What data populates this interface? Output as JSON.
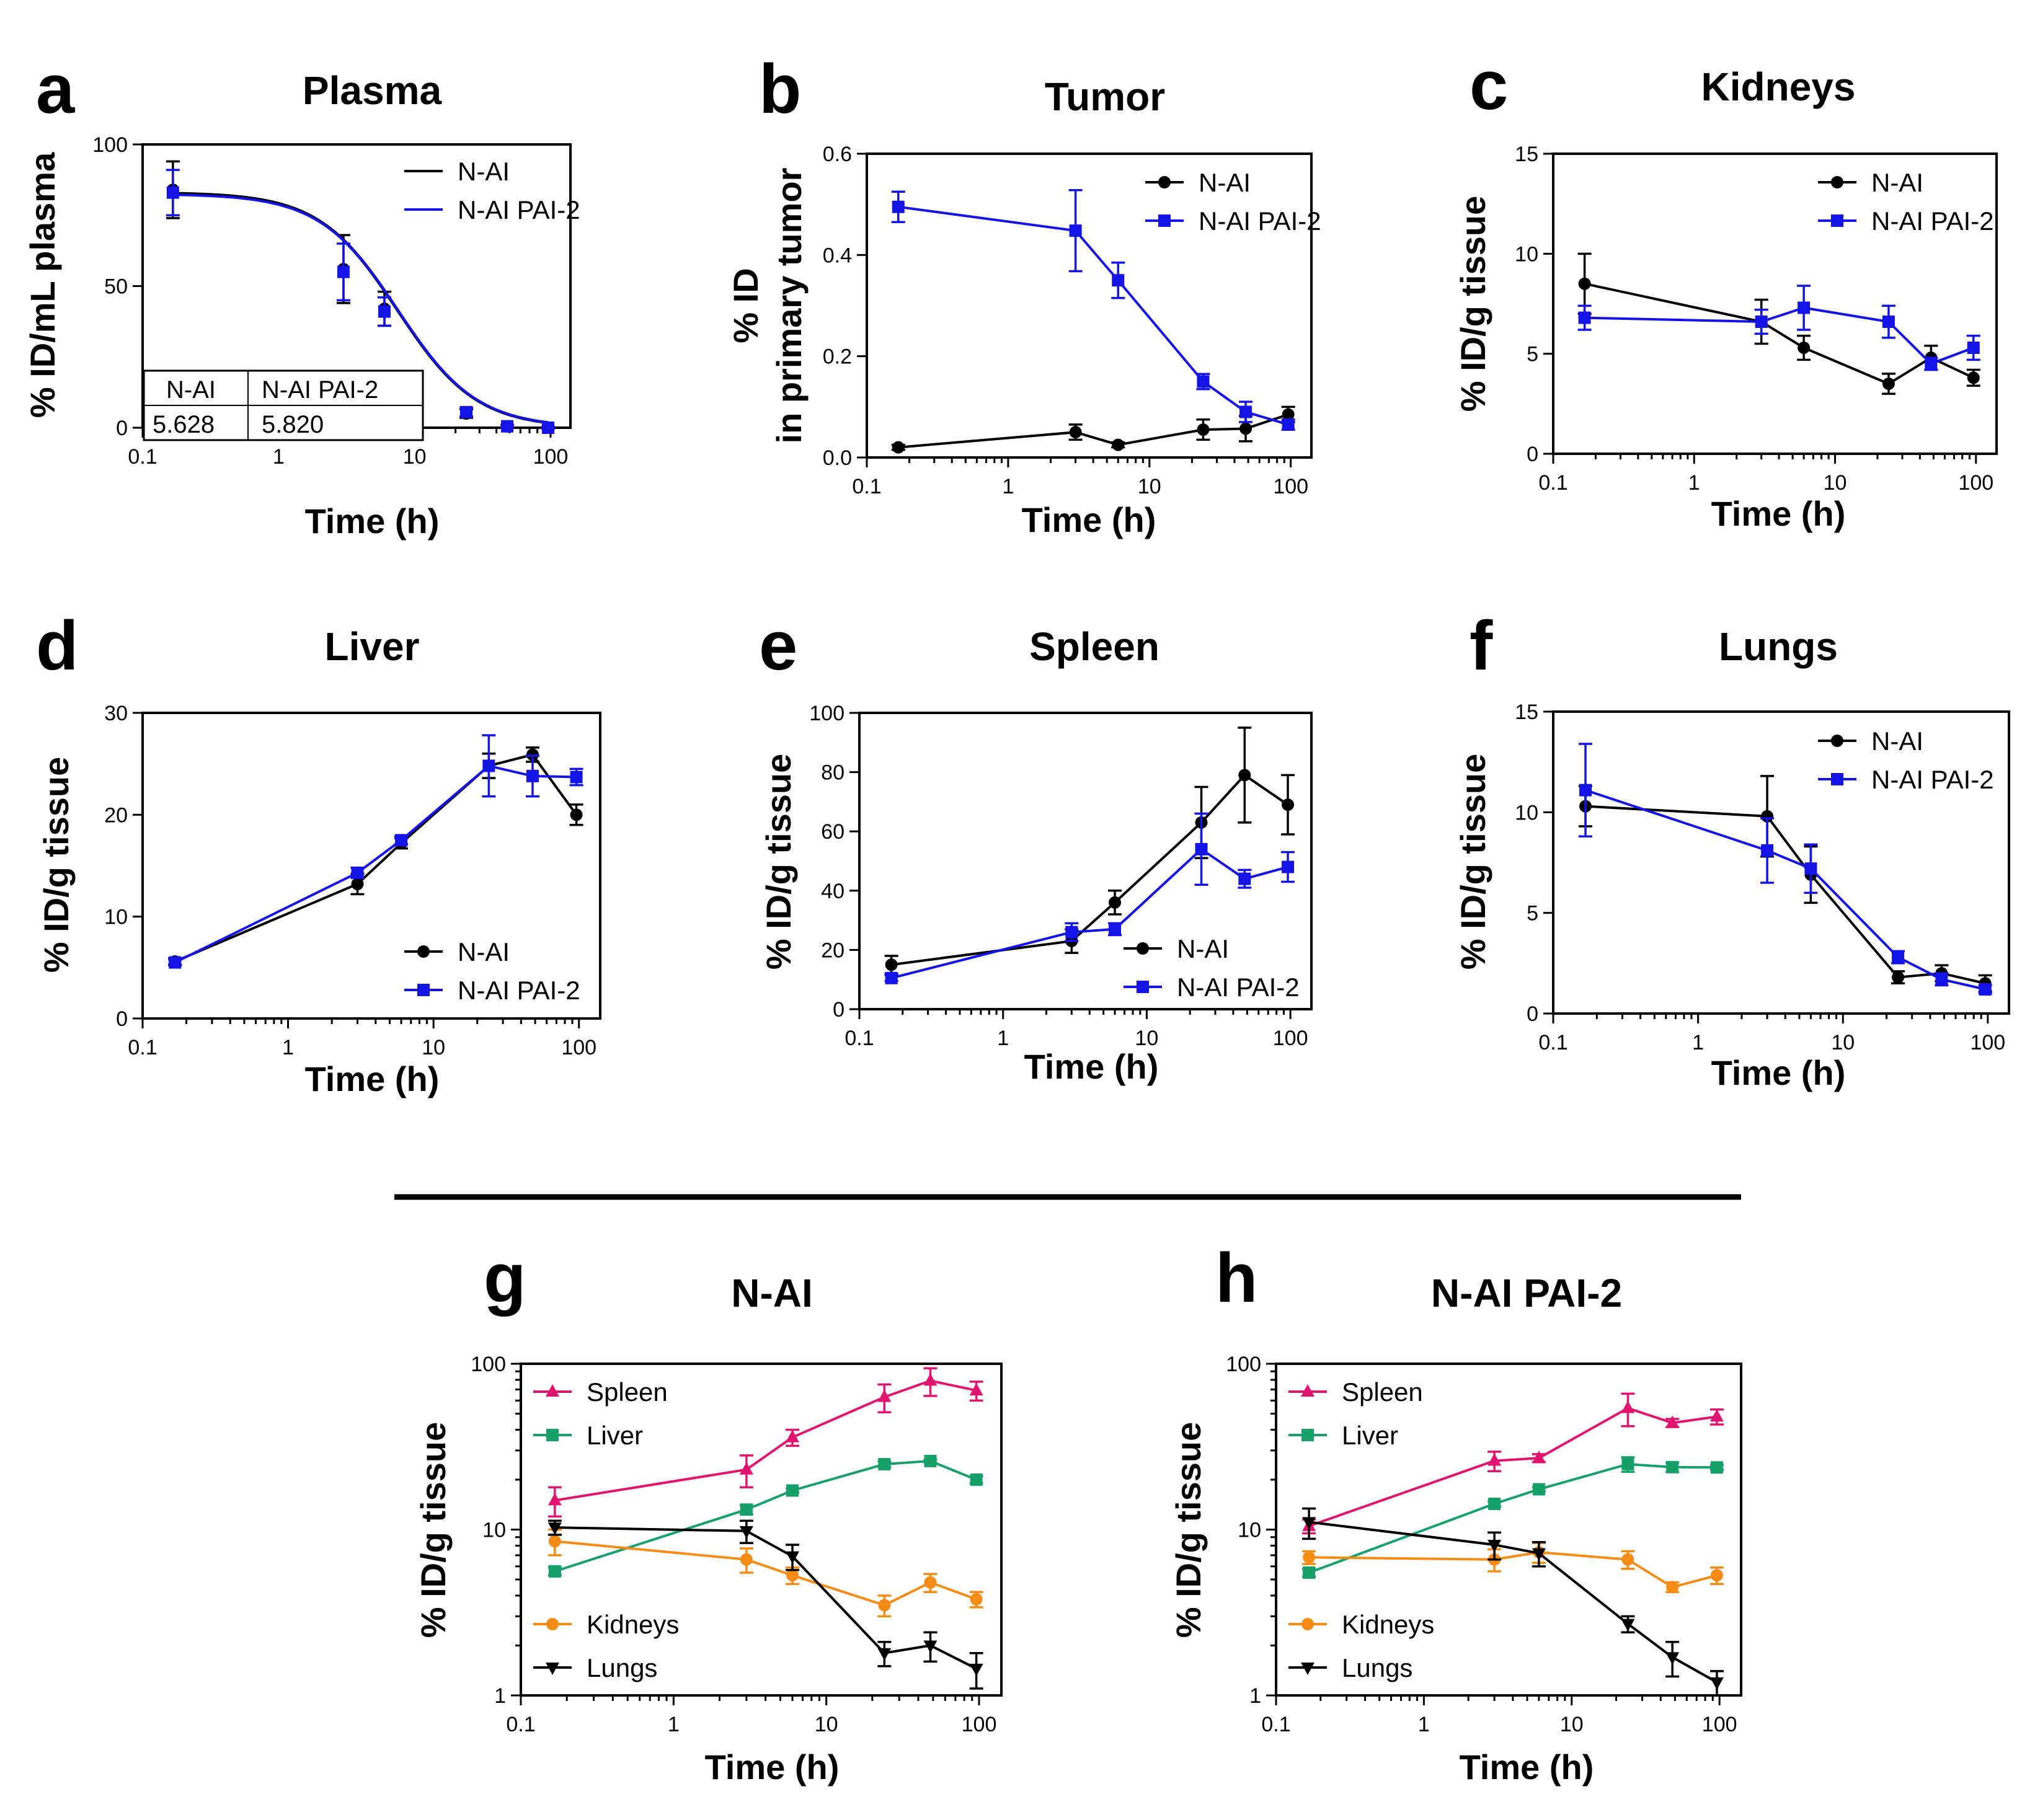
{
  "figure": {
    "colors": {
      "n_ai": "#000000",
      "n_ai_pai2": "#1414e6",
      "spleen": "#e0156f",
      "liver": "#17a06a",
      "kidneys": "#f38b14",
      "lungs": "#000000"
    },
    "panels": [
      {
        "letter": "a",
        "title": "Plasma",
        "xlabel": "Time (h)",
        "ylabel": "% ID/mL plasma",
        "xscale": "log",
        "xlim": [
          0.1,
          140
        ],
        "xticks": [
          0.1,
          1,
          10,
          100
        ],
        "xtick_labels": [
          "0.1",
          "1",
          "10",
          "100"
        ],
        "yscale": "linear",
        "ylim": [
          0,
          100
        ],
        "yticks": [
          0,
          50,
          100
        ],
        "ytick_labels": [
          "0",
          "50",
          "100"
        ],
        "legend_position": "top-right",
        "table": {
          "headers": [
            "N-AI",
            "N-AI PAI-2"
          ],
          "values": [
            "5.628",
            "5.820"
          ]
        },
        "series": [
          {
            "name": "N-AI",
            "color": "#000000",
            "marker": "circle",
            "line": "curve",
            "fit": {
              "top": 83,
              "x50": 7.5,
              "slope": 1.5
            },
            "x": [
              0.167,
              3,
              6,
              24,
              48,
              96
            ],
            "y": [
              84,
              56,
              42,
              5,
              0.5,
              0
            ],
            "err": [
              10,
              12,
              6,
              1.5,
              0.5,
              0.3
            ]
          },
          {
            "name": "N-AI PAI-2",
            "color": "#1414e6",
            "marker": "square",
            "line": "curve",
            "fit": {
              "top": 82.5,
              "x50": 7.6,
              "slope": 1.5
            },
            "x": [
              0.167,
              3,
              6,
              24,
              48,
              96
            ],
            "y": [
              83,
              55,
              41,
              5.5,
              0.5,
              0
            ],
            "err": [
              8,
              10,
              5,
              1.5,
              0.5,
              0.3
            ]
          }
        ]
      },
      {
        "letter": "b",
        "title": "Tumor",
        "xlabel": "Time (h)",
        "ylabel": "% ID",
        "ylabel2": "in primary tumor",
        "xscale": "log",
        "xlim": [
          0.1,
          140
        ],
        "xticks": [
          0.1,
          1,
          10,
          100
        ],
        "xtick_labels": [
          "0.1",
          "1",
          "10",
          "100"
        ],
        "yscale": "linear",
        "ylim": [
          0,
          0.6
        ],
        "yticks": [
          0,
          0.2,
          0.4,
          0.6
        ],
        "ytick_labels": [
          "0.0",
          "0.2",
          "0.4",
          "0.6"
        ],
        "legend_position": "top-right",
        "series": [
          {
            "name": "N-AI",
            "color": "#000000",
            "marker": "circle",
            "x": [
              0.167,
              3,
              6,
              24,
              48,
              96
            ],
            "y": [
              0.02,
              0.05,
              0.025,
              0.055,
              0.057,
              0.085
            ],
            "err": [
              0.005,
              0.015,
              0.005,
              0.02,
              0.025,
              0.015
            ]
          },
          {
            "name": "N-AI PAI-2",
            "color": "#1414e6",
            "marker": "square",
            "x": [
              0.167,
              3,
              6,
              24,
              48,
              96
            ],
            "y": [
              0.495,
              0.448,
              0.35,
              0.15,
              0.09,
              0.065
            ],
            "err": [
              0.03,
              0.08,
              0.035,
              0.015,
              0.02,
              0.01
            ]
          }
        ]
      },
      {
        "letter": "c",
        "title": "Kidneys",
        "xlabel": "Time (h)",
        "ylabel": "% ID/g tissue",
        "xscale": "log",
        "xlim": [
          0.1,
          140
        ],
        "xticks": [
          0.1,
          1,
          10,
          100
        ],
        "xtick_labels": [
          "0.1",
          "1",
          "10",
          "100"
        ],
        "yscale": "linear",
        "ylim": [
          0,
          15
        ],
        "yticks": [
          0,
          5,
          10,
          15
        ],
        "ytick_labels": [
          "0",
          "5",
          "10",
          "15"
        ],
        "legend_position": "top-right",
        "series": [
          {
            "name": "N-AI",
            "color": "#000000",
            "marker": "circle",
            "x": [
              0.167,
              3,
              6,
              24,
              48,
              96
            ],
            "y": [
              8.5,
              6.6,
              5.3,
              3.5,
              4.8,
              3.8
            ],
            "err": [
              1.5,
              1.1,
              0.6,
              0.5,
              0.6,
              0.4
            ]
          },
          {
            "name": "N-AI PAI-2",
            "color": "#1414e6",
            "marker": "square",
            "x": [
              0.167,
              3,
              6,
              24,
              48,
              96
            ],
            "y": [
              6.8,
              6.6,
              7.3,
              6.6,
              4.5,
              5.3
            ],
            "err": [
              0.6,
              0.6,
              1.1,
              0.8,
              0.3,
              0.6
            ]
          }
        ]
      },
      {
        "letter": "d",
        "title": "Liver",
        "xlabel": "Time (h)",
        "ylabel": "% ID/g tissue",
        "xscale": "log",
        "xlim": [
          0.1,
          140
        ],
        "xticks": [
          0.1,
          1,
          10,
          100
        ],
        "xtick_labels": [
          "0.1",
          "1",
          "10",
          "100"
        ],
        "yscale": "linear",
        "ylim": [
          0,
          30
        ],
        "yticks": [
          0,
          10,
          20,
          30
        ],
        "ytick_labels": [
          "0",
          "10",
          "20",
          "30"
        ],
        "legend_position": "bottom-right",
        "series": [
          {
            "name": "N-AI",
            "color": "#000000",
            "marker": "circle",
            "x": [
              0.167,
              3,
              6,
              24,
              48,
              96
            ],
            "y": [
              5.6,
              13.2,
              17.2,
              24.8,
              25.9,
              20
            ],
            "err": [
              0.3,
              1,
              0.5,
              1.2,
              0.7,
              1
            ]
          },
          {
            "name": "N-AI PAI-2",
            "color": "#1414e6",
            "marker": "square",
            "x": [
              0.167,
              3,
              6,
              24,
              48,
              96
            ],
            "y": [
              5.5,
              14.3,
              17.5,
              24.8,
              23.8,
              23.7
            ],
            "err": [
              0.3,
              0.5,
              0.4,
              3,
              2,
              0.8
            ]
          }
        ]
      },
      {
        "letter": "e",
        "title": "Spleen",
        "xlabel": "Time (h)",
        "ylabel": "% ID/g tissue",
        "xscale": "log",
        "xlim": [
          0.1,
          140
        ],
        "xticks": [
          0.1,
          1,
          10,
          100
        ],
        "xtick_labels": [
          "0.1",
          "1",
          "10",
          "100"
        ],
        "yscale": "linear",
        "ylim": [
          0,
          100
        ],
        "yticks": [
          0,
          20,
          40,
          60,
          80,
          100
        ],
        "ytick_labels": [
          "0",
          "20",
          "40",
          "60",
          "80",
          "100"
        ],
        "legend_position": "bottom-right",
        "series": [
          {
            "name": "N-AI",
            "color": "#000000",
            "marker": "circle",
            "x": [
              0.167,
              3,
              6,
              24,
              48,
              96
            ],
            "y": [
              15,
              23,
              36,
              63,
              79,
              69
            ],
            "err": [
              3,
              4,
              4,
              12,
              16,
              10
            ]
          },
          {
            "name": "N-AI PAI-2",
            "color": "#1414e6",
            "marker": "square",
            "x": [
              0.167,
              3,
              6,
              24,
              48,
              96
            ],
            "y": [
              10.5,
              26,
              27,
              54,
              44,
              48
            ],
            "err": [
              1,
              3,
              2,
              12,
              3,
              5
            ]
          }
        ]
      },
      {
        "letter": "f",
        "title": "Lungs",
        "xlabel": "Time (h)",
        "ylabel": "% ID/g tissue",
        "xscale": "log",
        "xlim": [
          0.1,
          140
        ],
        "xticks": [
          0.1,
          1,
          10,
          100
        ],
        "xtick_labels": [
          "0.1",
          "1",
          "10",
          "100"
        ],
        "yscale": "linear",
        "ylim": [
          0,
          15
        ],
        "yticks": [
          0,
          5,
          10,
          15
        ],
        "ytick_labels": [
          "0",
          "5",
          "10",
          "15"
        ],
        "legend_position": "top-right",
        "series": [
          {
            "name": "N-AI",
            "color": "#000000",
            "marker": "circle",
            "x": [
              0.167,
              3,
              6,
              24,
              48,
              96
            ],
            "y": [
              10.3,
              9.8,
              6.9,
              1.8,
              2,
              1.5
            ],
            "err": [
              1,
              2,
              1.4,
              0.3,
              0.4,
              0.4
            ]
          },
          {
            "name": "N-AI PAI-2",
            "color": "#1414e6",
            "marker": "square",
            "x": [
              0.167,
              3,
              6,
              24,
              48,
              96
            ],
            "y": [
              11.1,
              8.1,
              7.2,
              2.8,
              1.7,
              1.2
            ],
            "err": [
              2.3,
              1.6,
              1.2,
              0.3,
              0.3,
              0.2
            ]
          }
        ]
      },
      {
        "letter": "g",
        "title": "N-AI",
        "xlabel": "Time (h)",
        "ylabel": "% ID/g tissue",
        "xscale": "log",
        "xlim": [
          0.1,
          140
        ],
        "xticks": [
          0.1,
          1,
          10,
          100
        ],
        "xtick_labels": [
          "0.1",
          "1",
          "10",
          "100"
        ],
        "yscale": "log",
        "ylim": [
          1,
          100
        ],
        "yticks": [
          1,
          10,
          100
        ],
        "ytick_labels": [
          "1",
          "10",
          "100"
        ],
        "legend_position": "split-left",
        "series": [
          {
            "name": "Spleen",
            "color": "#e0156f",
            "marker": "triangle-up",
            "x": [
              0.167,
              3,
              6,
              24,
              48,
              96
            ],
            "y": [
              15,
              23,
              36,
              63,
              79,
              69
            ],
            "err": [
              3,
              5,
              4,
              12,
              15,
              9
            ]
          },
          {
            "name": "Liver",
            "color": "#17a06a",
            "marker": "square",
            "x": [
              0.167,
              3,
              6,
              24,
              48,
              96
            ],
            "y": [
              5.6,
              13.2,
              17.2,
              24.8,
              25.9,
              20
            ],
            "err": [
              0.3,
              0.8,
              0.5,
              1,
              0.6,
              1
            ]
          },
          {
            "name": "Kidneys",
            "color": "#f38b14",
            "marker": "circle",
            "x": [
              0.167,
              3,
              6,
              24,
              48,
              96
            ],
            "y": [
              8.5,
              6.6,
              5.3,
              3.5,
              4.8,
              3.8
            ],
            "err": [
              1.5,
              1.1,
              0.6,
              0.5,
              0.6,
              0.4
            ]
          },
          {
            "name": "Lungs",
            "color": "#000000",
            "marker": "triangle-down",
            "x": [
              0.167,
              3,
              6,
              24,
              48,
              96
            ],
            "y": [
              10.3,
              9.8,
              6.9,
              1.8,
              2,
              1.45
            ],
            "err": [
              1,
              1.5,
              1.2,
              0.3,
              0.4,
              0.35
            ]
          }
        ]
      },
      {
        "letter": "h",
        "title": "N-AI PAI-2",
        "xlabel": "Time (h)",
        "ylabel": "% ID/g tissue",
        "xscale": "log",
        "xlim": [
          0.1,
          140
        ],
        "xticks": [
          0.1,
          1,
          10,
          100
        ],
        "xtick_labels": [
          "0.1",
          "1",
          "10",
          "100"
        ],
        "yscale": "log",
        "ylim": [
          1,
          100
        ],
        "yticks": [
          1,
          10,
          100
        ],
        "ytick_labels": [
          "1",
          "10",
          "100"
        ],
        "legend_position": "split-left",
        "series": [
          {
            "name": "Spleen",
            "color": "#e0156f",
            "marker": "triangle-up",
            "x": [
              0.167,
              3,
              6,
              24,
              48,
              96
            ],
            "y": [
              10.5,
              26,
              27,
              54,
              44,
              48
            ],
            "err": [
              1,
              3.5,
              1.5,
              12,
              2.5,
              5
            ]
          },
          {
            "name": "Liver",
            "color": "#17a06a",
            "marker": "square",
            "x": [
              0.167,
              3,
              6,
              24,
              48,
              96
            ],
            "y": [
              5.5,
              14.3,
              17.5,
              24.8,
              23.8,
              23.7
            ],
            "err": [
              0.3,
              0.5,
              0.5,
              2.5,
              1.5,
              0.8
            ]
          },
          {
            "name": "Kidneys",
            "color": "#f38b14",
            "marker": "circle",
            "x": [
              0.167,
              3,
              6,
              24,
              48,
              96
            ],
            "y": [
              6.8,
              6.6,
              7.3,
              6.6,
              4.5,
              5.3
            ],
            "err": [
              0.6,
              1,
              1,
              0.8,
              0.3,
              0.6
            ]
          },
          {
            "name": "Lungs",
            "color": "#000000",
            "marker": "triangle-down",
            "x": [
              0.167,
              3,
              6,
              24,
              48,
              96
            ],
            "y": [
              11.1,
              8.1,
              7.2,
              2.7,
              1.7,
              1.2
            ],
            "err": [
              2.3,
              1.5,
              1.2,
              0.3,
              0.4,
              0.2
            ]
          }
        ]
      }
    ]
  }
}
